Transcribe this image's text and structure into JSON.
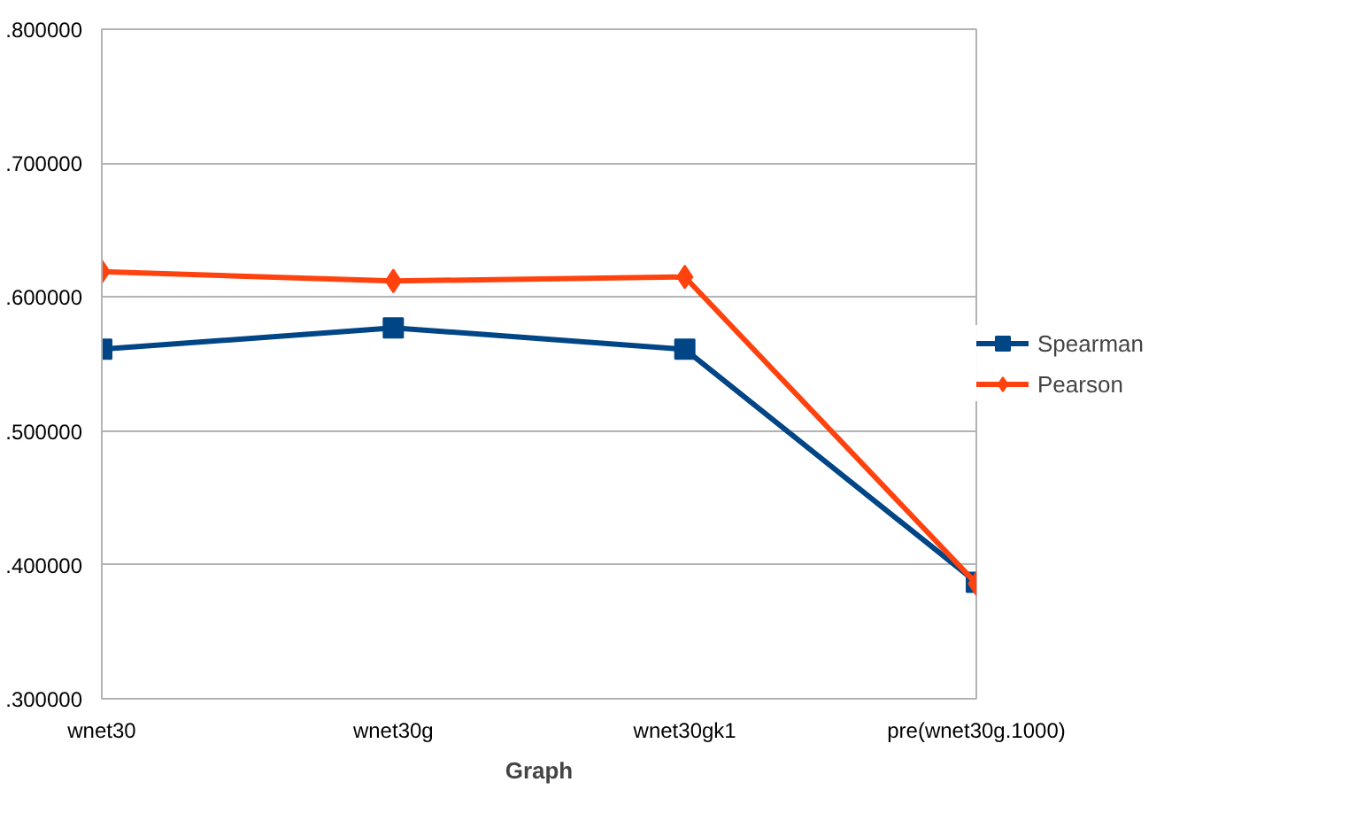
{
  "chart_data": {
    "type": "line",
    "xlabel": "Graph",
    "categories": [
      "wnet30",
      "wnet30g",
      "wnet30gk1",
      "pre(wnet30g.1000)"
    ],
    "series": [
      {
        "name": "Spearman",
        "color": "#004586",
        "values": [
          0.561,
          0.577,
          0.561,
          0.387
        ],
        "marker": "square"
      },
      {
        "name": "Pearson",
        "color": "#ff420e",
        "values": [
          0.619,
          0.612,
          0.615,
          0.386
        ],
        "marker": "diamond"
      }
    ],
    "ylim": [
      0.3,
      0.8
    ],
    "yticks": [
      {
        "value": 0.3,
        "label": ".300000"
      },
      {
        "value": 0.4,
        "label": ".400000"
      },
      {
        "value": 0.5,
        "label": ".500000"
      },
      {
        "value": 0.6,
        "label": ".600000"
      },
      {
        "value": 0.7,
        "label": ".700000"
      },
      {
        "value": 0.8,
        "label": ".800000"
      }
    ],
    "grid": "y",
    "legend": "right",
    "line_style": "solid"
  }
}
